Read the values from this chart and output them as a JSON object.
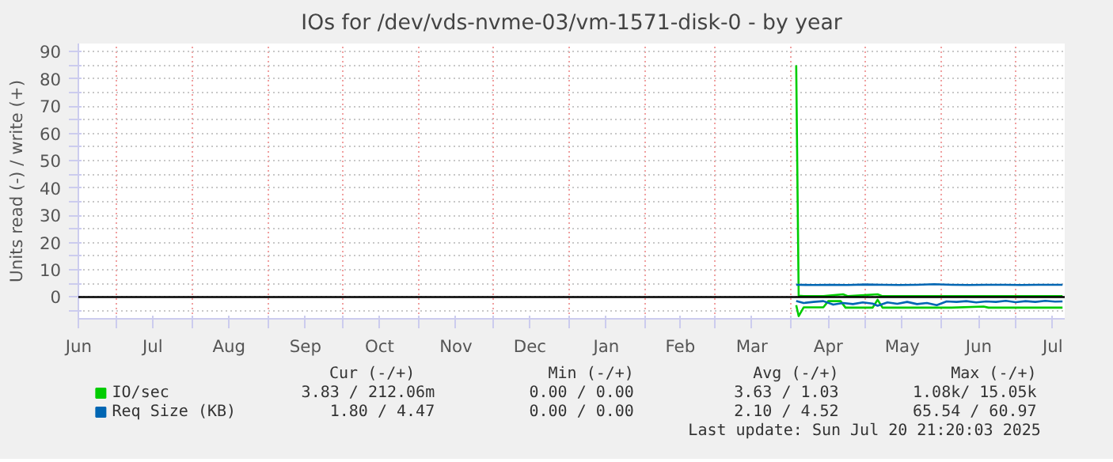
{
  "chart_data": {
    "type": "line",
    "title": "IOs for /dev/vds-nvme-03/vm-1571-disk-0 - by year",
    "ylabel": "Units read (-) / write (+)",
    "xlim": [
      "2024-06-15T21:20",
      "2025-07-20T21:20"
    ],
    "xticks": [
      {
        "value": "2024-06-16",
        "label": "Jun"
      },
      {
        "value": "2024-07-01",
        "label": null
      },
      {
        "value": "2024-07-16",
        "label": "Jul"
      },
      {
        "value": "2024-08-01",
        "label": null
      },
      {
        "value": "2024-08-16",
        "label": "Aug"
      },
      {
        "value": "2024-09-01",
        "label": null
      },
      {
        "value": "2024-09-16",
        "label": "Sep"
      },
      {
        "value": "2024-10-01",
        "label": null
      },
      {
        "value": "2024-10-16",
        "label": "Oct"
      },
      {
        "value": "2024-11-01",
        "label": null
      },
      {
        "value": "2024-11-16",
        "label": "Nov"
      },
      {
        "value": "2024-12-01",
        "label": null
      },
      {
        "value": "2024-12-16",
        "label": "Dec"
      },
      {
        "value": "2025-01-01",
        "label": null
      },
      {
        "value": "2025-01-16",
        "label": "Jan"
      },
      {
        "value": "2025-02-01",
        "label": null
      },
      {
        "value": "2025-02-15",
        "label": "Feb"
      },
      {
        "value": "2025-03-01",
        "label": null
      },
      {
        "value": "2025-03-16",
        "label": "Mar"
      },
      {
        "value": "2025-04-01",
        "label": null
      },
      {
        "value": "2025-04-16",
        "label": "Apr"
      },
      {
        "value": "2025-05-01",
        "label": null
      },
      {
        "value": "2025-05-16",
        "label": "May"
      },
      {
        "value": "2025-06-01",
        "label": null
      },
      {
        "value": "2025-06-16",
        "label": "Jun"
      },
      {
        "value": "2025-07-01",
        "label": null
      },
      {
        "value": "2025-07-16",
        "label": "Jul"
      }
    ],
    "ylim": [
      -8,
      93
    ],
    "yticks": [
      {
        "value": -5,
        "label": null
      },
      0,
      {
        "value": 5,
        "label": null
      },
      10,
      {
        "value": 15,
        "label": null
      },
      20,
      {
        "value": 25,
        "label": null
      },
      30,
      {
        "value": 35,
        "label": null
      },
      40,
      {
        "value": 45,
        "label": null
      },
      50,
      {
        "value": 55,
        "label": null
      },
      60,
      {
        "value": 65,
        "label": null
      },
      70,
      {
        "value": 75,
        "label": null
      },
      80,
      {
        "value": 85,
        "label": null
      },
      90
    ],
    "grid": true,
    "legend": "bottom",
    "marker": "none",
    "line_style": "solid",
    "ref_lines": [
      {
        "axis": "y",
        "value": 0,
        "color": "#000000"
      }
    ],
    "series": [
      {
        "name": "IO/sec",
        "color": "#00cc00",
        "x": [
          "2025-04-03",
          "2025-04-04",
          "2025-04-06",
          "2025-04-14",
          "2025-04-16",
          "2025-04-21",
          "2025-04-23",
          "2025-05-04",
          "2025-05-06",
          "2025-05-08",
          "2025-05-20",
          "2025-06-05",
          "2025-06-18",
          "2025-06-20",
          "2025-07-05",
          "2025-07-20"
        ],
        "values": [
          -3.0,
          -7.0,
          -3.8,
          -3.8,
          -1.5,
          -1.5,
          -3.9,
          -3.9,
          -1.0,
          -3.9,
          -3.9,
          -3.9,
          -3.5,
          -3.9,
          -3.9,
          -3.9
        ]
      },
      {
        "color": "#00cc00",
        "x": [
          "2025-04-03",
          "2025-04-04",
          "2025-04-06",
          "2025-04-14",
          "2025-04-22",
          "2025-04-24",
          "2025-05-06",
          "2025-05-08",
          "2025-05-20",
          "2025-06-05",
          "2025-06-20",
          "2025-07-05",
          "2025-07-20"
        ],
        "values": [
          85,
          0.5,
          0.3,
          0.3,
          1.0,
          0.3,
          1.0,
          0.3,
          0.3,
          0.3,
          0.3,
          0.3,
          0.3
        ]
      },
      {
        "name": "Req Size (KB)",
        "color": "#0066b3",
        "x": [
          "2025-04-03",
          "2025-04-06",
          "2025-04-10",
          "2025-04-14",
          "2025-04-18",
          "2025-04-22",
          "2025-04-26",
          "2025-04-30",
          "2025-05-04",
          "2025-05-06",
          "2025-05-10",
          "2025-05-14",
          "2025-05-18",
          "2025-05-22",
          "2025-05-26",
          "2025-05-30",
          "2025-06-03",
          "2025-06-07",
          "2025-06-11",
          "2025-06-15",
          "2025-06-19",
          "2025-06-23",
          "2025-06-27",
          "2025-07-01",
          "2025-07-05",
          "2025-07-09",
          "2025-07-13",
          "2025-07-17",
          "2025-07-20"
        ],
        "values": [
          -1.5,
          -2.2,
          -1.8,
          -1.5,
          -2.8,
          -2.2,
          -2.6,
          -2.0,
          -2.4,
          -3.2,
          -2.0,
          -2.5,
          -1.8,
          -2.6,
          -2.2,
          -3.0,
          -1.6,
          -1.8,
          -1.5,
          -2.0,
          -1.6,
          -1.8,
          -1.4,
          -1.9,
          -1.5,
          -1.8,
          -1.4,
          -1.7,
          -1.6
        ]
      },
      {
        "color": "#0066b3",
        "x": [
          "2025-04-03",
          "2025-04-10",
          "2025-04-17",
          "2025-04-24",
          "2025-05-01",
          "2025-05-08",
          "2025-05-15",
          "2025-05-22",
          "2025-05-29",
          "2025-06-05",
          "2025-06-12",
          "2025-06-19",
          "2025-06-26",
          "2025-07-03",
          "2025-07-10",
          "2025-07-17",
          "2025-07-20"
        ],
        "values": [
          4.5,
          4.4,
          4.5,
          4.4,
          4.6,
          4.5,
          4.4,
          4.5,
          4.7,
          4.5,
          4.4,
          4.5,
          4.5,
          4.4,
          4.5,
          4.5,
          4.5
        ]
      }
    ],
    "annotations": [
      "Cur (-/+)",
      "Min (-/+)",
      "Avg (-/+)",
      "Max (-/+)",
      "3.83 / 212.06m",
      "0.00 / 0.00",
      "3.63 / 1.03",
      "1.08k/ 15.05k",
      "1.80 / 4.47",
      "0.00 / 0.00",
      "2.10 / 4.52",
      "65.54 / 60.97",
      "Last update: Sun Jul 20 21:20:03 2025"
    ]
  }
}
